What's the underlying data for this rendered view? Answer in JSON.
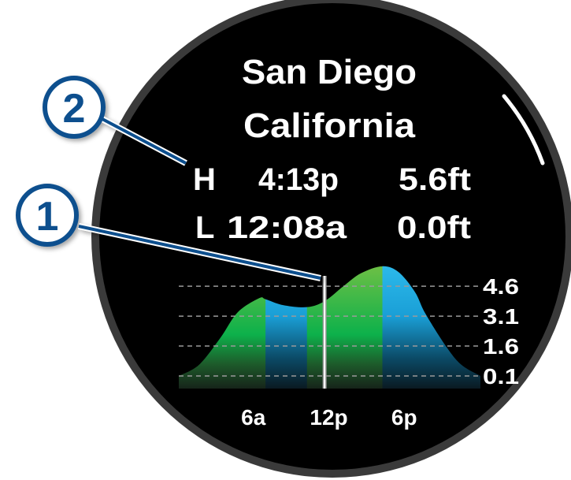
{
  "location": {
    "city": "San Diego",
    "region": "California"
  },
  "tides": [
    {
      "type": "H",
      "time": "4:13p",
      "height": "5.6ft"
    },
    {
      "type": "L",
      "time": "12:08a",
      "height": "0.0ft"
    }
  ],
  "callouts": [
    "1",
    "2"
  ],
  "colors": {
    "rising": "#6abf45",
    "falling": "#2bb8ea",
    "bezel": "#3a3a3a",
    "callout": "#0b4f8e"
  },
  "chart_data": {
    "type": "area",
    "x_unit": "hour of day",
    "xlim": [
      0,
      24
    ],
    "ylim": [
      -0.5,
      6.0
    ],
    "grid": true,
    "y_ticks": [
      4.6,
      3.1,
      1.6,
      0.1
    ],
    "y_tick_labels": [
      "4.6",
      "3.1",
      "1.6",
      "0.1"
    ],
    "x_ticks": [
      6,
      12,
      18
    ],
    "x_tick_labels": [
      "6a",
      "12p",
      "6p"
    ],
    "current_time_hour": 11.6,
    "segments": [
      {
        "trend": "rising",
        "from": 0,
        "to": 6.9
      },
      {
        "trend": "falling",
        "from": 6.9,
        "to": 10.2
      },
      {
        "trend": "rising",
        "from": 10.2,
        "to": 16.2
      },
      {
        "trend": "falling",
        "from": 16.2,
        "to": 24
      }
    ],
    "points": [
      [
        0,
        0.1
      ],
      [
        1.6,
        0.65
      ],
      [
        3.3,
        2.0
      ],
      [
        4.7,
        3.3
      ],
      [
        6.4,
        4.0
      ],
      [
        6.9,
        3.95
      ],
      [
        8.3,
        3.65
      ],
      [
        10.2,
        3.55
      ],
      [
        11.6,
        3.85
      ],
      [
        13.1,
        4.6
      ],
      [
        14.5,
        5.25
      ],
      [
        16.2,
        5.6
      ],
      [
        17.5,
        5.3
      ],
      [
        18.8,
        4.3
      ],
      [
        19.6,
        3.25
      ],
      [
        21.3,
        1.55
      ],
      [
        22.5,
        0.65
      ],
      [
        24,
        0.1
      ]
    ]
  }
}
